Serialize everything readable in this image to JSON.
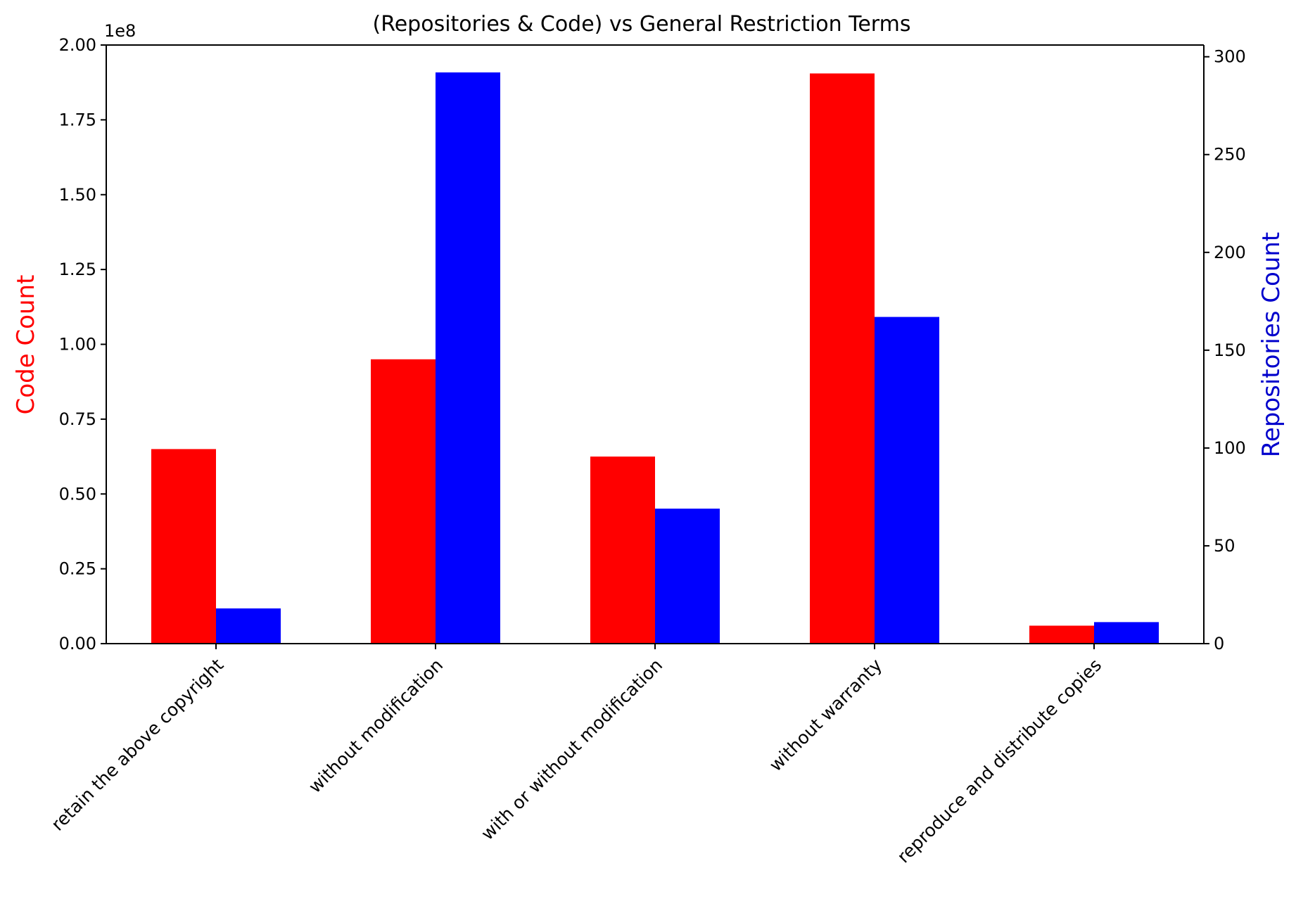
{
  "chart_data": {
    "type": "bar",
    "title": "(Repositories & Code) vs General Restriction Terms",
    "categories": [
      "retain the above copyright",
      "without modification",
      "with or without modification",
      "without warranty",
      "reproduce and distribute copies"
    ],
    "series": [
      {
        "axis": "left",
        "color": "#ff0000",
        "values": [
          65000000,
          95000000,
          62500000,
          190500000,
          6000000
        ]
      },
      {
        "axis": "right",
        "color": "#0000ff",
        "values": [
          18,
          292,
          69,
          167,
          11
        ]
      }
    ],
    "left_axis": {
      "label": "Code Count",
      "label_color": "#ff0000",
      "range": [
        0,
        200000000
      ],
      "ticks": [
        0,
        25000000,
        50000000,
        75000000,
        100000000,
        125000000,
        150000000,
        175000000,
        200000000
      ],
      "tick_labels": [
        "0.00",
        "0.25",
        "0.50",
        "0.75",
        "1.00",
        "1.25",
        "1.50",
        "1.75",
        "2.00"
      ],
      "offset_text": "1e8"
    },
    "right_axis": {
      "label": "Repositories Count",
      "label_color": "#0000cc",
      "range": [
        0,
        306
      ],
      "ticks": [
        0,
        50,
        100,
        150,
        200,
        250,
        300
      ],
      "tick_labels": [
        "0",
        "50",
        "100",
        "150",
        "200",
        "250",
        "300"
      ]
    },
    "grid": false,
    "legend": "none"
  }
}
